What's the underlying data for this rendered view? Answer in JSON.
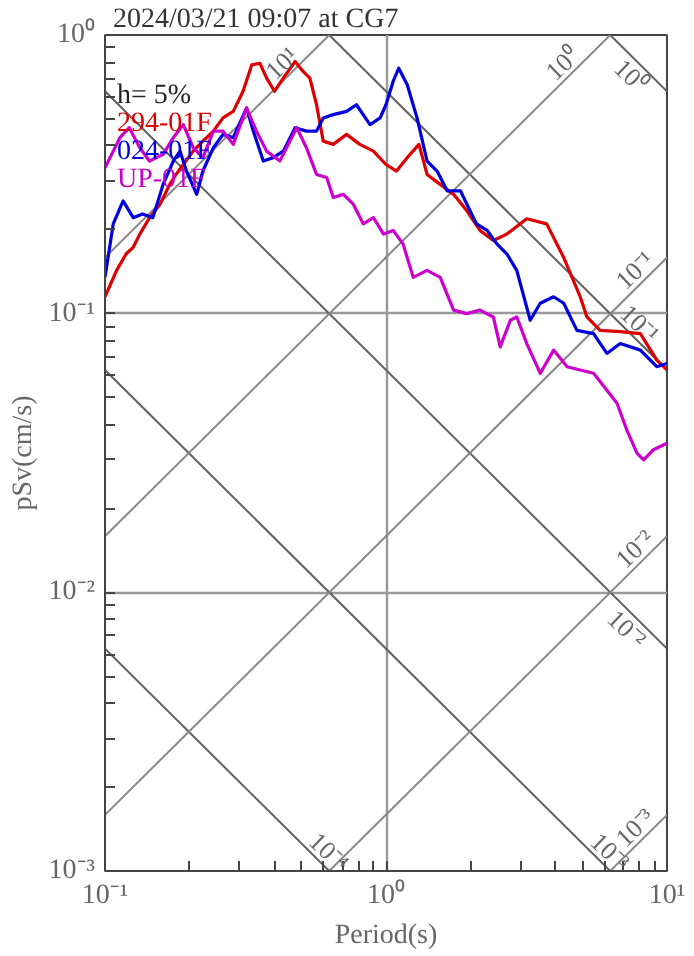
{
  "chart_data": {
    "type": "line",
    "title": "2024/03/21 09:07 at CG7",
    "xlabel": "Period(s)",
    "ylabel": "pSv(cm/s)",
    "log": "xy",
    "grid": true,
    "legend": "top left",
    "line_style": "solid",
    "marker": "none",
    "xlim": [
      0.1,
      10
    ],
    "ylim": [
      0.001,
      1
    ],
    "xticks": [
      {
        "value": 0.1,
        "label": "10⁻¹"
      },
      {
        "value": 0.2,
        "label": null
      },
      {
        "value": 0.3,
        "label": null
      },
      {
        "value": 0.4,
        "label": null
      },
      {
        "value": 0.5,
        "label": null
      },
      {
        "value": 0.6,
        "label": null
      },
      {
        "value": 0.7,
        "label": null
      },
      {
        "value": 0.8,
        "label": null
      },
      {
        "value": 0.9,
        "label": null
      },
      {
        "value": 1,
        "label": "10⁰"
      },
      {
        "value": 2,
        "label": null
      },
      {
        "value": 3,
        "label": null
      },
      {
        "value": 4,
        "label": null
      },
      {
        "value": 5,
        "label": null
      },
      {
        "value": 6,
        "label": null
      },
      {
        "value": 7,
        "label": null
      },
      {
        "value": 8,
        "label": null
      },
      {
        "value": 9,
        "label": null
      },
      {
        "value": 10,
        "label": "10¹"
      }
    ],
    "yticks": [
      {
        "value": 0.001,
        "label": "10⁻³"
      },
      {
        "value": 0.002,
        "label": null
      },
      {
        "value": 0.003,
        "label": null
      },
      {
        "value": 0.004,
        "label": null
      },
      {
        "value": 0.005,
        "label": null
      },
      {
        "value": 0.006,
        "label": null
      },
      {
        "value": 0.007,
        "label": null
      },
      {
        "value": 0.008,
        "label": null
      },
      {
        "value": 0.009,
        "label": null
      },
      {
        "value": 0.01,
        "label": "10⁻²"
      },
      {
        "value": 0.02,
        "label": null
      },
      {
        "value": 0.03,
        "label": null
      },
      {
        "value": 0.04,
        "label": null
      },
      {
        "value": 0.05,
        "label": null
      },
      {
        "value": 0.06,
        "label": null
      },
      {
        "value": 0.07,
        "label": null
      },
      {
        "value": 0.08,
        "label": null
      },
      {
        "value": 0.09,
        "label": null
      },
      {
        "value": 0.1,
        "label": "10⁻¹"
      },
      {
        "value": 0.2,
        "label": null
      },
      {
        "value": 0.3,
        "label": null
      },
      {
        "value": 0.4,
        "label": null
      },
      {
        "value": 0.5,
        "label": null
      },
      {
        "value": 0.6,
        "label": null
      },
      {
        "value": 0.7,
        "label": null
      },
      {
        "value": 0.8,
        "label": null
      },
      {
        "value": 0.9,
        "label": null
      },
      {
        "value": 1,
        "label": "10⁰"
      }
    ],
    "series": [
      {
        "color": "#606060",
        "x": [
          0.1,
          0.628
        ],
        "values": [
          0.00628,
          0.001
        ]
      },
      {
        "color": "#606060",
        "x": [
          0.1,
          6.28
        ],
        "values": [
          0.0628,
          0.001
        ]
      },
      {
        "color": "#606060",
        "x": [
          0.1,
          10
        ],
        "values": [
          0.628,
          0.00628
        ]
      },
      {
        "color": "#606060",
        "x": [
          0.628,
          10
        ],
        "values": [
          1,
          0.0628
        ]
      },
      {
        "color": "#606060",
        "x": [
          6.28,
          10
        ],
        "values": [
          1,
          0.628
        ]
      },
      {
        "color": "#888888",
        "x": [
          0.1,
          0.628
        ],
        "values": [
          0.159,
          1
        ]
      },
      {
        "color": "#888888",
        "x": [
          0.1,
          6.28
        ],
        "values": [
          0.0159,
          1
        ]
      },
      {
        "color": "#888888",
        "x": [
          0.1,
          10
        ],
        "values": [
          0.00159,
          0.159
        ]
      },
      {
        "color": "#888888",
        "x": [
          0.628,
          10
        ],
        "values": [
          0.001,
          0.0159
        ]
      },
      {
        "color": "#888888",
        "x": [
          6.28,
          10
        ],
        "values": [
          0.001,
          0.00159
        ]
      },
      {
        "name": "294-01F",
        "color": "#dd0000",
        "x": [
          0.1,
          0.11,
          0.119,
          0.126,
          0.133,
          0.144,
          0.157,
          0.17,
          0.179,
          0.19,
          0.206,
          0.223,
          0.243,
          0.263,
          0.286,
          0.31,
          0.333,
          0.356,
          0.376,
          0.401,
          0.431,
          0.475,
          0.507,
          0.536,
          0.566,
          0.598,
          0.649,
          0.724,
          0.807,
          0.902,
          1.0,
          1.09,
          1.19,
          1.31,
          1.4,
          1.56,
          1.74,
          1.94,
          2.16,
          2.41,
          2.69,
          3.17,
          3.73,
          4.29,
          4.91,
          5.19,
          5.78,
          6.82,
          8.04,
          9.2,
          10
        ],
        "values": [
          0.115,
          0.143,
          0.164,
          0.173,
          0.193,
          0.221,
          0.247,
          0.291,
          0.316,
          0.343,
          0.383,
          0.416,
          0.452,
          0.504,
          0.532,
          0.628,
          0.782,
          0.791,
          0.7,
          0.628,
          0.7,
          0.803,
          0.74,
          0.7,
          0.562,
          0.416,
          0.405,
          0.44,
          0.405,
          0.383,
          0.343,
          0.325,
          0.363,
          0.405,
          0.316,
          0.291,
          0.268,
          0.234,
          0.199,
          0.183,
          0.193,
          0.219,
          0.21,
          0.159,
          0.115,
          0.0973,
          0.0871,
          0.0862,
          0.0848,
          0.0681,
          0.0628
        ]
      },
      {
        "name": "024-01F",
        "color": "#0000dd",
        "x": [
          0.1,
          0.107,
          0.116,
          0.126,
          0.136,
          0.148,
          0.161,
          0.175,
          0.185,
          0.195,
          0.212,
          0.223,
          0.243,
          0.263,
          0.286,
          0.319,
          0.337,
          0.366,
          0.397,
          0.431,
          0.475,
          0.521,
          0.566,
          0.598,
          0.649,
          0.724,
          0.785,
          0.877,
          0.953,
          1.0,
          1.06,
          1.11,
          1.19,
          1.29,
          1.4,
          1.52,
          1.65,
          1.84,
          1.94,
          2.1,
          2.29,
          2.48,
          2.69,
          2.92,
          3.26,
          3.54,
          3.95,
          4.29,
          4.78,
          5.48,
          6.11,
          6.82,
          8.04,
          9.2,
          10
        ],
        "values": [
          0.135,
          0.21,
          0.254,
          0.221,
          0.228,
          0.221,
          0.291,
          0.353,
          0.383,
          0.325,
          0.268,
          0.325,
          0.394,
          0.44,
          0.428,
          0.547,
          0.452,
          0.353,
          0.363,
          0.383,
          0.465,
          0.452,
          0.452,
          0.504,
          0.518,
          0.532,
          0.562,
          0.477,
          0.504,
          0.562,
          0.681,
          0.76,
          0.663,
          0.504,
          0.353,
          0.325,
          0.276,
          0.276,
          0.247,
          0.21,
          0.199,
          0.178,
          0.164,
          0.143,
          0.0947,
          0.109,
          0.115,
          0.109,
          0.0871,
          0.0848,
          0.072,
          0.0781,
          0.074,
          0.0645,
          0.0663
        ]
      },
      {
        "name": "UP-01F",
        "color": "#cc00cc",
        "x": [
          0.1,
          0.107,
          0.113,
          0.122,
          0.133,
          0.144,
          0.161,
          0.175,
          0.19,
          0.206,
          0.223,
          0.243,
          0.263,
          0.286,
          0.319,
          0.346,
          0.376,
          0.419,
          0.481,
          0.521,
          0.566,
          0.615,
          0.649,
          0.705,
          0.765,
          0.83,
          0.902,
          0.98,
          1.06,
          1.15,
          1.25,
          1.4,
          1.56,
          1.74,
          1.94,
          2.16,
          2.41,
          2.55,
          2.77,
          2.92,
          3.17,
          3.54,
          3.95,
          4.41,
          4.91,
          5.48,
          6.64,
          7.19,
          7.82,
          8.26,
          8.95,
          10
        ],
        "values": [
          0.334,
          0.383,
          0.428,
          0.465,
          0.394,
          0.353,
          0.373,
          0.428,
          0.477,
          0.394,
          0.363,
          0.452,
          0.452,
          0.405,
          0.547,
          0.452,
          0.383,
          0.353,
          0.465,
          0.394,
          0.316,
          0.308,
          0.261,
          0.268,
          0.247,
          0.21,
          0.221,
          0.193,
          0.199,
          0.178,
          0.135,
          0.143,
          0.135,
          0.103,
          0.1,
          0.103,
          0.0973,
          0.076,
          0.0947,
          0.0973,
          0.0781,
          0.0611,
          0.074,
          0.0645,
          0.0628,
          0.0611,
          0.0477,
          0.0383,
          0.0316,
          0.0299,
          0.0325,
          0.0343
        ]
      }
    ],
    "annotations": [
      "h= 5%",
      {
        "text": "10¹",
        "x": 0.46,
        "y": 0.73
      },
      {
        "text": "10⁰",
        "x": 4.6,
        "y": 0.73
      },
      {
        "text": "10⁰",
        "x": 8.1,
        "y": 0.775
      },
      {
        "text": "10⁻¹",
        "x": 8.3,
        "y": 0.132
      },
      {
        "text": "10⁻¹",
        "x": 7.4,
        "y": 0.0849
      },
      {
        "text": "10⁻²",
        "x": 8.3,
        "y": 0.0132
      },
      {
        "text": "10⁻²",
        "x": 7.8,
        "y": 0.00805
      },
      {
        "text": "10⁻⁴",
        "x": 0.58,
        "y": 0.00108
      },
      {
        "text": "10⁻³",
        "x": 5.8,
        "y": 0.00108
      },
      {
        "text": "10⁻³",
        "x": 8.3,
        "y": 0.00132
      }
    ]
  }
}
